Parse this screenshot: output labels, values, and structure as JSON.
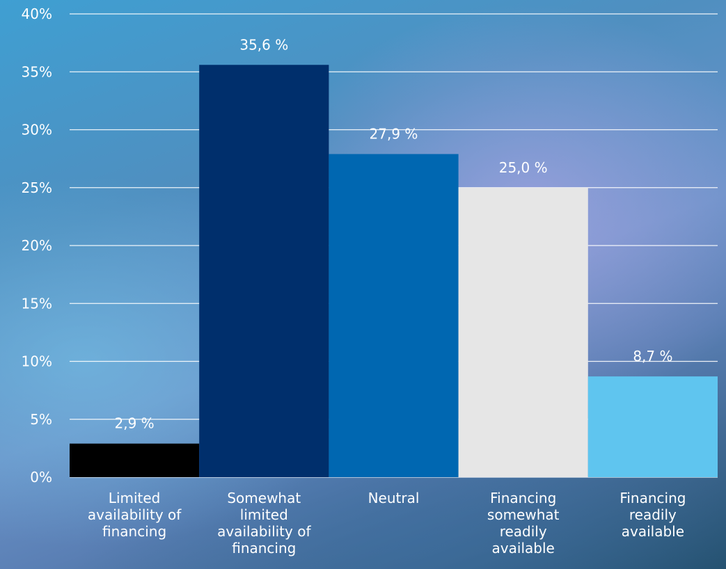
{
  "chart_data": {
    "type": "bar",
    "categories": [
      "Limited availability of financing",
      "Somewhat limited availability of financing",
      "Neutral",
      "Financing somewhat readily available",
      "Financing readily available"
    ],
    "category_lines": [
      [
        "Limited",
        "availability of",
        "financing"
      ],
      [
        "Somewhat",
        "limited",
        "availability of",
        "financing"
      ],
      [
        "Neutral"
      ],
      [
        "Financing",
        "somewhat",
        "readily",
        "available"
      ],
      [
        "Financing",
        "readily",
        "available"
      ]
    ],
    "values": [
      2.9,
      35.6,
      27.9,
      25.0,
      8.7
    ],
    "data_labels": [
      "2,9 %",
      "35,6 %",
      "27,9 %",
      "25,0 %",
      "8,7 %"
    ],
    "colors": [
      "#000000",
      "#002f6c",
      "#0067b1",
      "#e6e6e6",
      "#5fc5ef"
    ],
    "ylim": [
      0,
      40
    ],
    "yticks": [
      0,
      5,
      10,
      15,
      20,
      25,
      30,
      35,
      40
    ],
    "ytick_labels": [
      "0%",
      "5%",
      "10%",
      "15%",
      "20%",
      "25%",
      "30%",
      "35%",
      "40%"
    ],
    "grid": true,
    "title": "",
    "xlabel": "",
    "ylabel": ""
  }
}
